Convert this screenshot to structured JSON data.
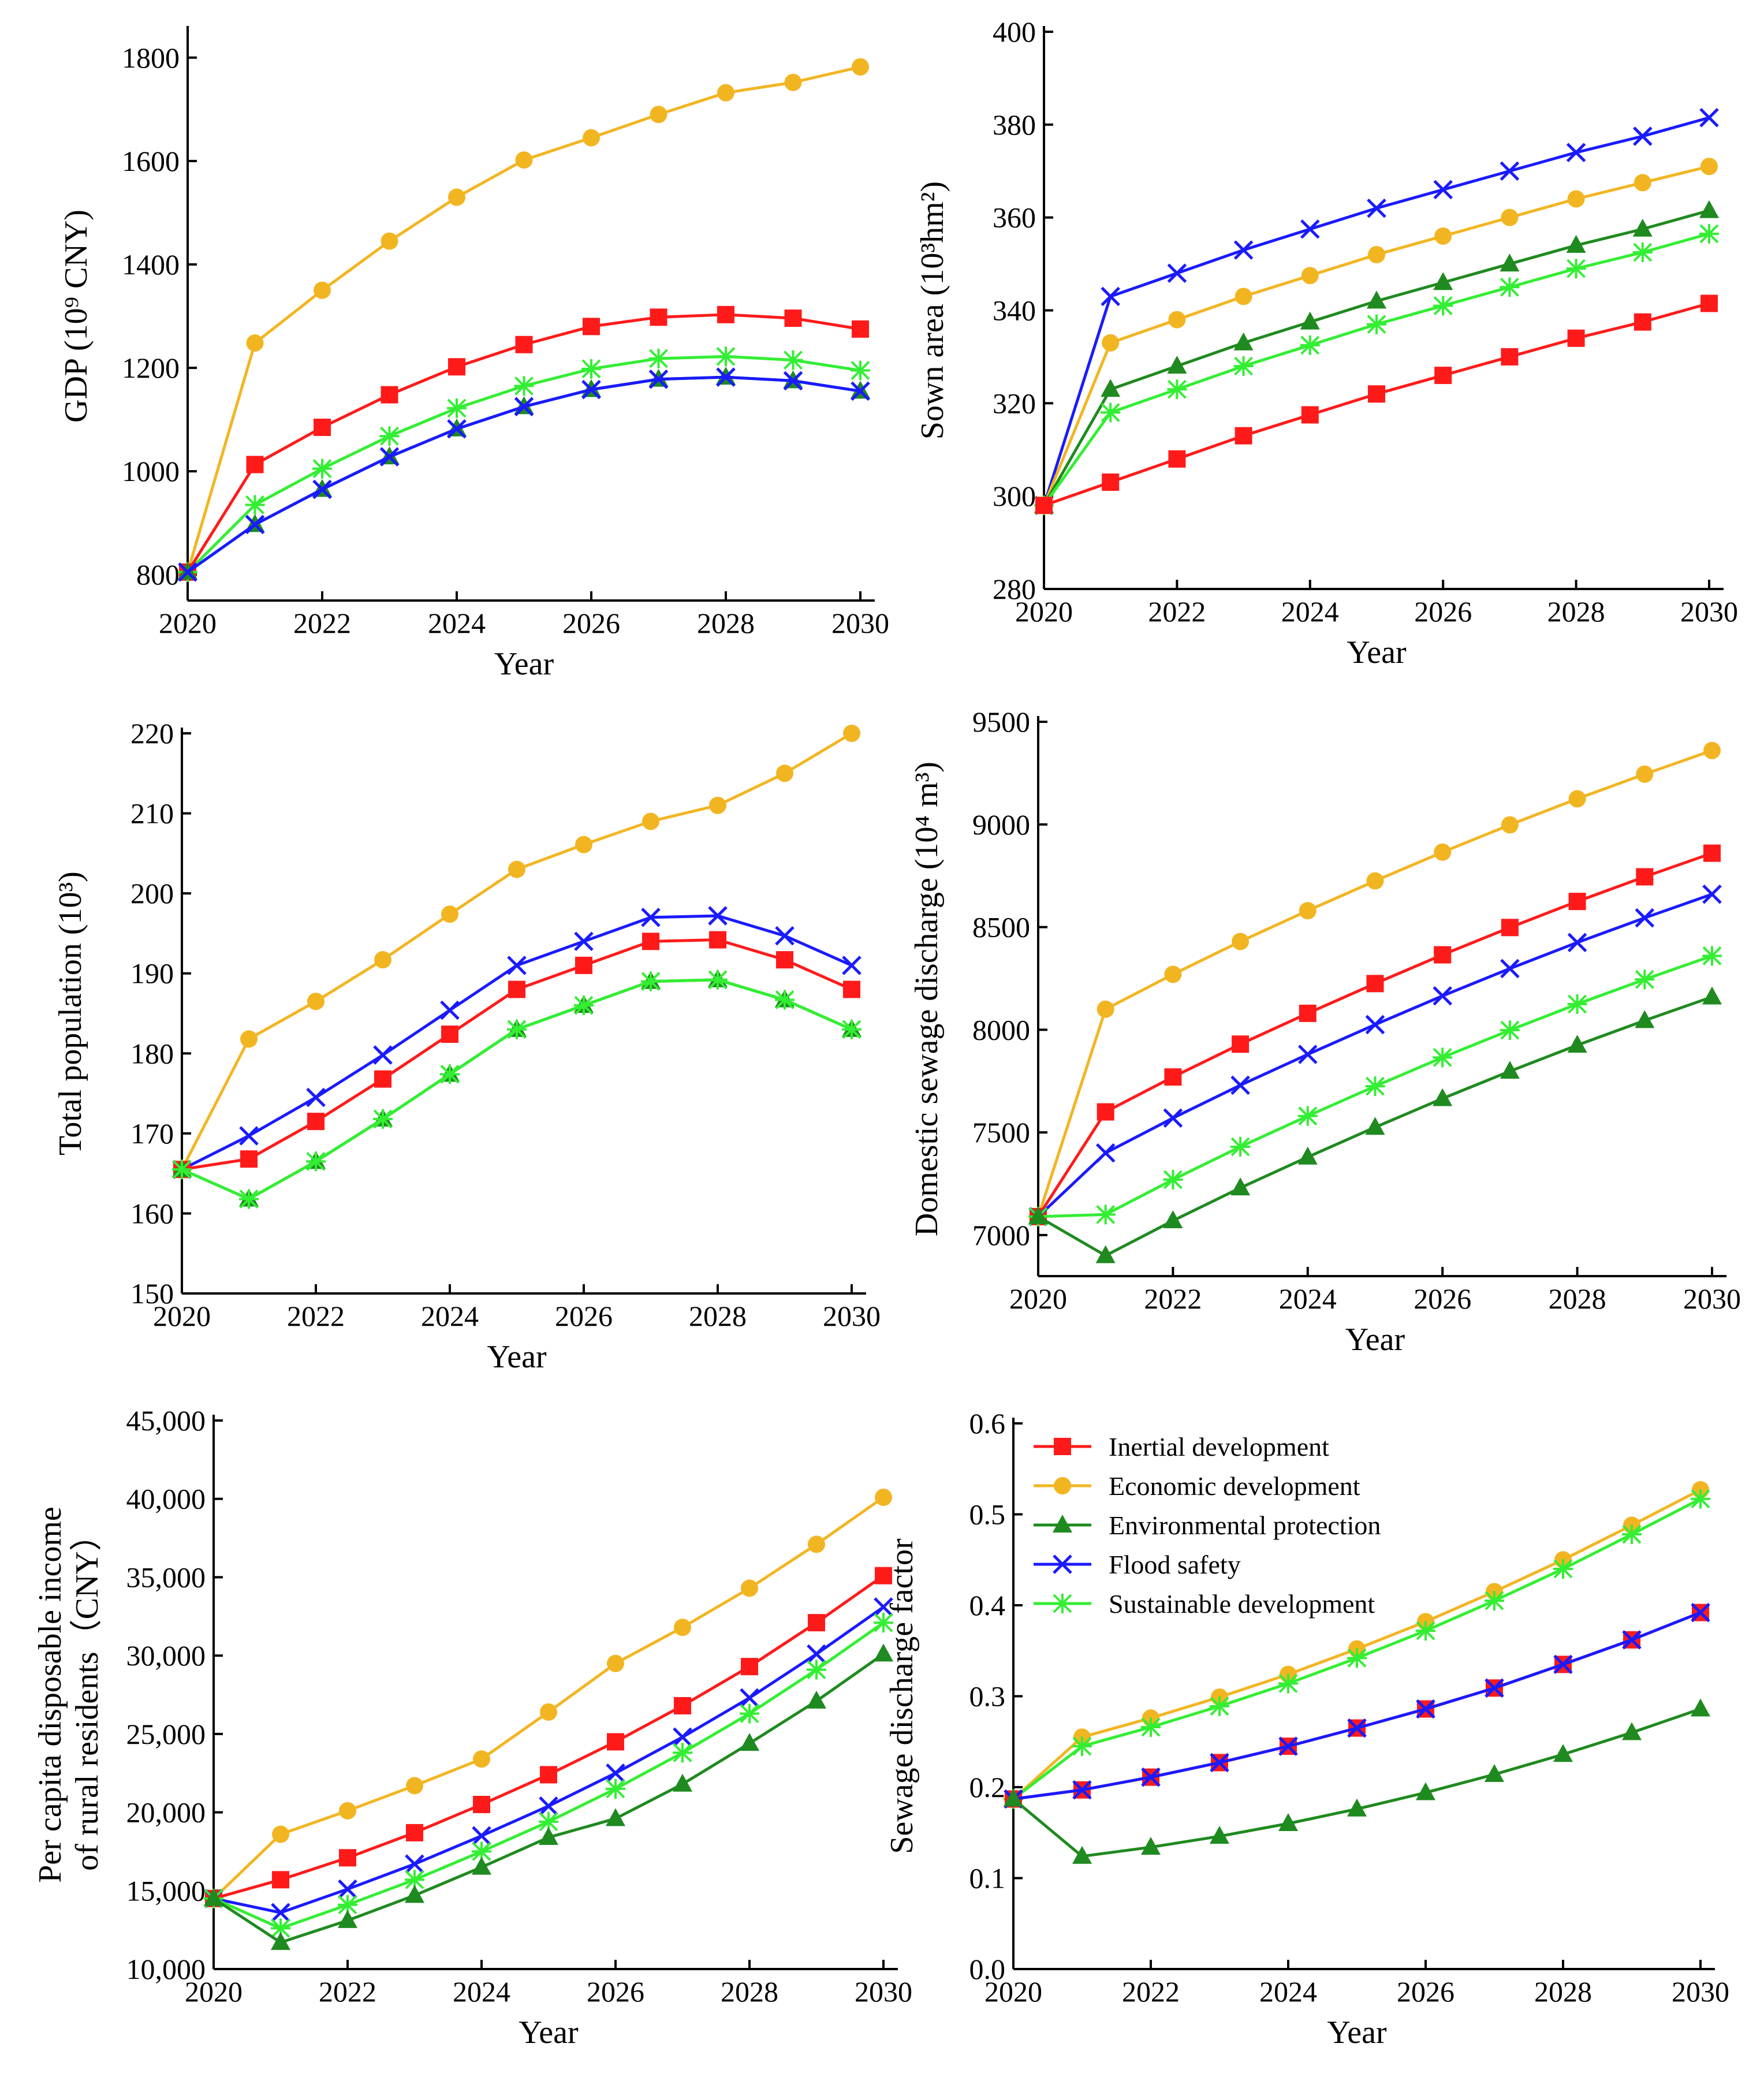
{
  "figure": {
    "series_styles": [
      {
        "name": "Inertial development",
        "color": "#ff1a1a",
        "marker": "square"
      },
      {
        "name": "Economic development",
        "color": "#f2b522",
        "marker": "circle"
      },
      {
        "name": "Environmental protection",
        "color": "#1f8a1f",
        "marker": "triangle"
      },
      {
        "name": "Flood safety",
        "color": "#1a1aff",
        "marker": "x"
      },
      {
        "name": "Sustainable development",
        "color": "#33ee33",
        "marker": "star"
      }
    ]
  },
  "chart_data": [
    {
      "id": "gdp",
      "type": "line",
      "xlabel": "Year",
      "ylabel": "GDP (10⁹ CNY)",
      "x": [
        2020,
        2021,
        2022,
        2023,
        2024,
        2025,
        2026,
        2027,
        2028,
        2029,
        2030
      ],
      "xlim": [
        2020,
        2030
      ],
      "xticks": [
        2020,
        2022,
        2024,
        2026,
        2028,
        2030
      ],
      "ylim": [
        750,
        1850
      ],
      "yticks": [
        800,
        1000,
        1200,
        1400,
        1600,
        1800
      ],
      "yticklabels": [
        "800",
        "1000",
        "1200",
        "1400",
        "1600",
        "1800"
      ],
      "series": [
        {
          "name": "Economic development",
          "values": [
            805,
            1248,
            1350,
            1445,
            1530,
            1602,
            1645,
            1690,
            1732,
            1752,
            1782
          ]
        },
        {
          "name": "Inertial development",
          "values": [
            805,
            1013,
            1085,
            1148,
            1202,
            1245,
            1280,
            1298,
            1303,
            1296,
            1275
          ]
        },
        {
          "name": "Sustainable development",
          "values": [
            805,
            935,
            1005,
            1068,
            1122,
            1165,
            1198,
            1218,
            1222,
            1215,
            1195
          ]
        },
        {
          "name": "Environmental protection",
          "values": [
            805,
            897,
            965,
            1028,
            1082,
            1125,
            1158,
            1178,
            1182,
            1175,
            1155
          ]
        },
        {
          "name": "Flood safety",
          "values": [
            805,
            897,
            965,
            1028,
            1082,
            1125,
            1158,
            1178,
            1182,
            1175,
            1155
          ]
        }
      ]
    },
    {
      "id": "sown",
      "type": "line",
      "xlabel": "Year",
      "ylabel": "Sown area (10³hm²)",
      "x": [
        2020,
        2021,
        2022,
        2023,
        2024,
        2025,
        2026,
        2027,
        2028,
        2029,
        2030
      ],
      "xlim": [
        2020,
        2030
      ],
      "xticks": [
        2020,
        2022,
        2024,
        2026,
        2028,
        2030
      ],
      "ylim": [
        280,
        400
      ],
      "yticks": [
        280,
        300,
        320,
        340,
        360,
        380,
        400
      ],
      "yticklabels": [
        "280",
        "300",
        "320",
        "340",
        "360",
        "380",
        "400"
      ],
      "series": [
        {
          "name": "Flood safety",
          "values": [
            298,
            343,
            348,
            353,
            357.5,
            362,
            366,
            370,
            374,
            377.5,
            381.5
          ]
        },
        {
          "name": "Economic development",
          "values": [
            298,
            333,
            338,
            343,
            347.5,
            352,
            356,
            360,
            364,
            367.5,
            371
          ]
        },
        {
          "name": "Environmental protection",
          "values": [
            298,
            323,
            328,
            333,
            337.5,
            342,
            346,
            350,
            354,
            357.5,
            361.5
          ]
        },
        {
          "name": "Sustainable development",
          "values": [
            298,
            318,
            323,
            328,
            332.5,
            337,
            341,
            345,
            349,
            352.5,
            356.5
          ]
        },
        {
          "name": "Inertial development",
          "values": [
            298,
            303,
            308,
            313,
            317.5,
            322,
            326,
            330,
            334,
            337.5,
            341.5
          ]
        }
      ]
    },
    {
      "id": "population",
      "type": "line",
      "xlabel": "Year",
      "ylabel": "Total population (10³)",
      "x": [
        2020,
        2021,
        2022,
        2023,
        2024,
        2025,
        2026,
        2027,
        2028,
        2029,
        2030
      ],
      "xlim": [
        2020,
        2030
      ],
      "xticks": [
        2020,
        2022,
        2024,
        2026,
        2028,
        2030
      ],
      "ylim": [
        150,
        220
      ],
      "yticks": [
        150,
        160,
        170,
        180,
        190,
        200,
        210,
        220
      ],
      "yticklabels": [
        "150",
        "160",
        "170",
        "180",
        "190",
        "200",
        "210",
        "220"
      ],
      "series": [
        {
          "name": "Economic development",
          "values": [
            165.5,
            181.8,
            186.5,
            191.7,
            197.4,
            203,
            206.1,
            209,
            211,
            215,
            220
          ]
        },
        {
          "name": "Flood safety",
          "values": [
            165.5,
            169.7,
            174.5,
            179.8,
            185.4,
            191,
            194,
            197,
            197.2,
            194.7,
            191
          ]
        },
        {
          "name": "Inertial development",
          "values": [
            165.5,
            166.8,
            171.5,
            176.8,
            182.4,
            188,
            191,
            194,
            194.2,
            191.7,
            188
          ]
        },
        {
          "name": "Environmental protection",
          "values": [
            165.5,
            161.8,
            166.5,
            171.8,
            177.4,
            183,
            186,
            189,
            189.2,
            186.7,
            183
          ]
        },
        {
          "name": "Sustainable development",
          "values": [
            165.5,
            161.8,
            166.5,
            171.8,
            177.4,
            183,
            186,
            189,
            189.2,
            186.7,
            183
          ]
        }
      ]
    },
    {
      "id": "sewage",
      "type": "line",
      "xlabel": "Year",
      "ylabel": "Domestic sewage discharge (10⁴ m³)",
      "x": [
        2020,
        2021,
        2022,
        2023,
        2024,
        2025,
        2026,
        2027,
        2028,
        2029,
        2030
      ],
      "xlim": [
        2020,
        2030
      ],
      "xticks": [
        2020,
        2022,
        2024,
        2026,
        2028,
        2030
      ],
      "ylim": [
        6800,
        9500
      ],
      "yticks": [
        7000,
        7500,
        8000,
        8500,
        9000,
        9500
      ],
      "yticklabels": [
        "7000",
        "7500",
        "8000",
        "8500",
        "9000",
        "9500"
      ],
      "series": [
        {
          "name": "Economic development",
          "values": [
            7090,
            8100,
            8270,
            8430,
            8580,
            8725,
            8865,
            8998,
            9125,
            9245,
            9360
          ]
        },
        {
          "name": "Inertial development",
          "values": [
            7090,
            7600,
            7770,
            7930,
            8080,
            8225,
            8365,
            8498,
            8625,
            8745,
            8860
          ]
        },
        {
          "name": "Flood safety",
          "values": [
            7090,
            7400,
            7570,
            7730,
            7880,
            8025,
            8165,
            8298,
            8425,
            8545,
            8660
          ]
        },
        {
          "name": "Sustainable development",
          "values": [
            7090,
            7100,
            7270,
            7430,
            7580,
            7725,
            7865,
            7998,
            8125,
            8245,
            8360
          ]
        },
        {
          "name": "Environmental protection",
          "values": [
            7090,
            6900,
            7070,
            7230,
            7380,
            7525,
            7665,
            7798,
            7925,
            8045,
            8160
          ]
        }
      ]
    },
    {
      "id": "income",
      "type": "line",
      "xlabel": "Year",
      "ylabel": "Per capita disposable income of rural residents（CNY）",
      "ylabel_lines": [
        "Per capita disposable income",
        "of rural residents（CNY）"
      ],
      "x": [
        2020,
        2021,
        2022,
        2023,
        2024,
        2025,
        2026,
        2027,
        2028,
        2029,
        2030
      ],
      "xlim": [
        2020,
        2030
      ],
      "xticks": [
        2020,
        2022,
        2024,
        2026,
        2028,
        2030
      ],
      "ylim": [
        10000,
        45000
      ],
      "yticks": [
        10000,
        15000,
        20000,
        25000,
        30000,
        35000,
        40000,
        45000
      ],
      "yticklabels": [
        "10,000",
        "15,000",
        "20,000",
        "25,000",
        "30,000",
        "35,000",
        "40,000",
        "45,000"
      ],
      "series": [
        {
          "name": "Economic development",
          "values": [
            14500,
            18600,
            20100,
            21700,
            23400,
            26400,
            29500,
            31800,
            34300,
            37100,
            40100
          ]
        },
        {
          "name": "Inertial development",
          "values": [
            14500,
            15700,
            17100,
            18700,
            20500,
            22400,
            24500,
            26800,
            29300,
            32100,
            35100
          ]
        },
        {
          "name": "Flood safety",
          "values": [
            14500,
            13600,
            15100,
            16700,
            18500,
            20400,
            22500,
            24800,
            27300,
            30100,
            33100
          ]
        },
        {
          "name": "Sustainable development",
          "values": [
            14500,
            12600,
            14100,
            15700,
            17500,
            19400,
            21500,
            23800,
            26300,
            29100,
            32100
          ]
        },
        {
          "name": "Environmental protection",
          "values": [
            14500,
            11700,
            13100,
            14700,
            16500,
            18400,
            19600,
            21800,
            24400,
            27100,
            30100
          ]
        }
      ]
    },
    {
      "id": "factor",
      "type": "line",
      "xlabel": "Year",
      "ylabel": "Sewage discharge factor",
      "x": [
        2020,
        2021,
        2022,
        2023,
        2024,
        2025,
        2026,
        2027,
        2028,
        2029,
        2030
      ],
      "xlim": [
        2020,
        2030
      ],
      "xticks": [
        2020,
        2022,
        2024,
        2026,
        2028,
        2030
      ],
      "ylim": [
        0,
        0.6
      ],
      "yticks": [
        0,
        0.1,
        0.2,
        0.3,
        0.4,
        0.5,
        0.6
      ],
      "yticklabels": [
        "0.0",
        "0.1",
        "0.2",
        "0.3",
        "0.4",
        "0.5",
        "0.6"
      ],
      "legend_position": "top-left",
      "legend": [
        "Inertial development",
        "Economic development",
        "Environmental protection",
        "Flood safety",
        "Sustainable development"
      ],
      "series": [
        {
          "name": "Economic development",
          "values": [
            0.187,
            0.255,
            0.276,
            0.299,
            0.324,
            0.352,
            0.382,
            0.415,
            0.45,
            0.488,
            0.527
          ]
        },
        {
          "name": "Sustainable development",
          "values": [
            0.187,
            0.245,
            0.266,
            0.289,
            0.314,
            0.342,
            0.372,
            0.405,
            0.44,
            0.478,
            0.517
          ]
        },
        {
          "name": "Inertial development",
          "values": [
            0.187,
            0.197,
            0.211,
            0.227,
            0.245,
            0.265,
            0.286,
            0.309,
            0.335,
            0.362,
            0.392
          ]
        },
        {
          "name": "Flood safety",
          "values": [
            0.187,
            0.197,
            0.211,
            0.227,
            0.245,
            0.265,
            0.286,
            0.309,
            0.335,
            0.362,
            0.392
          ]
        },
        {
          "name": "Environmental protection",
          "values": [
            0.187,
            0.124,
            0.134,
            0.146,
            0.16,
            0.176,
            0.194,
            0.214,
            0.236,
            0.26,
            0.286
          ]
        }
      ]
    }
  ]
}
